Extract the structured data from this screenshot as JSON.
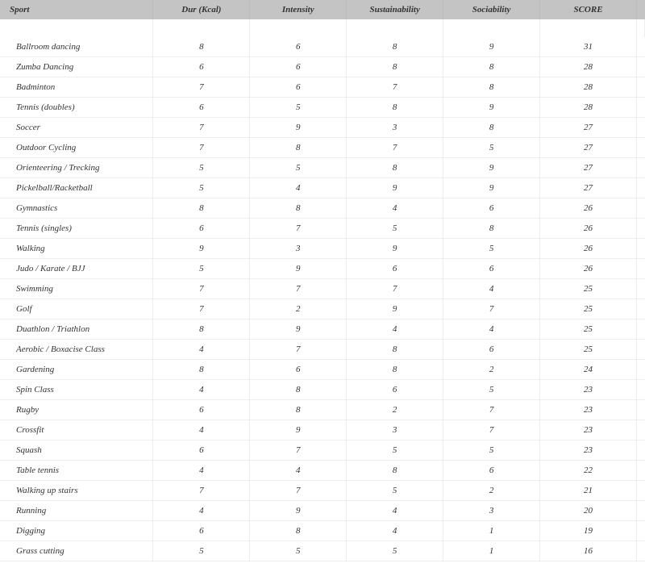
{
  "columns": [
    "Sport",
    "Dur (Kcal)",
    "Intensity",
    "Sustainability",
    "Sociability",
    "SCORE"
  ],
  "rows": [
    {
      "sport": "Ballroom dancing",
      "dur": 8,
      "intensity": 6,
      "sustain": 8,
      "social": 9,
      "score": 31
    },
    {
      "sport": "Zumba Dancing",
      "dur": 6,
      "intensity": 6,
      "sustain": 8,
      "social": 8,
      "score": 28
    },
    {
      "sport": "Badminton",
      "dur": 7,
      "intensity": 6,
      "sustain": 7,
      "social": 8,
      "score": 28
    },
    {
      "sport": "Tennis (doubles)",
      "dur": 6,
      "intensity": 5,
      "sustain": 8,
      "social": 9,
      "score": 28
    },
    {
      "sport": "Soccer",
      "dur": 7,
      "intensity": 9,
      "sustain": 3,
      "social": 8,
      "score": 27
    },
    {
      "sport": "Outdoor Cycling",
      "dur": 7,
      "intensity": 8,
      "sustain": 7,
      "social": 5,
      "score": 27
    },
    {
      "sport": "Orienteering / Trecking",
      "dur": 5,
      "intensity": 5,
      "sustain": 8,
      "social": 9,
      "score": 27
    },
    {
      "sport": "Pickelball/Racketball",
      "dur": 5,
      "intensity": 4,
      "sustain": 9,
      "social": 9,
      "score": 27
    },
    {
      "sport": "Gymnastics",
      "dur": 8,
      "intensity": 8,
      "sustain": 4,
      "social": 6,
      "score": 26
    },
    {
      "sport": "Tennis (singles)",
      "dur": 6,
      "intensity": 7,
      "sustain": 5,
      "social": 8,
      "score": 26
    },
    {
      "sport": "Walking",
      "dur": 9,
      "intensity": 3,
      "sustain": 9,
      "social": 5,
      "score": 26
    },
    {
      "sport": "Judo / Karate / BJJ",
      "dur": 5,
      "intensity": 9,
      "sustain": 6,
      "social": 6,
      "score": 26
    },
    {
      "sport": "Swimming",
      "dur": 7,
      "intensity": 7,
      "sustain": 7,
      "social": 4,
      "score": 25
    },
    {
      "sport": "Golf",
      "dur": 7,
      "intensity": 2,
      "sustain": 9,
      "social": 7,
      "score": 25
    },
    {
      "sport": "Duathlon / Triathlon",
      "dur": 8,
      "intensity": 9,
      "sustain": 4,
      "social": 4,
      "score": 25
    },
    {
      "sport": "Aerobic / Boxacise Class",
      "dur": 4,
      "intensity": 7,
      "sustain": 8,
      "social": 6,
      "score": 25
    },
    {
      "sport": "Gardening",
      "dur": 8,
      "intensity": 6,
      "sustain": 8,
      "social": 2,
      "score": 24
    },
    {
      "sport": "Spin Class",
      "dur": 4,
      "intensity": 8,
      "sustain": 6,
      "social": 5,
      "score": 23
    },
    {
      "sport": "Rugby",
      "dur": 6,
      "intensity": 8,
      "sustain": 2,
      "social": 7,
      "score": 23
    },
    {
      "sport": "Crossfit",
      "dur": 4,
      "intensity": 9,
      "sustain": 3,
      "social": 7,
      "score": 23
    },
    {
      "sport": "Squash",
      "dur": 6,
      "intensity": 7,
      "sustain": 5,
      "social": 5,
      "score": 23
    },
    {
      "sport": "Table tennis",
      "dur": 4,
      "intensity": 4,
      "sustain": 8,
      "social": 6,
      "score": 22
    },
    {
      "sport": "Walking up stairs",
      "dur": 7,
      "intensity": 7,
      "sustain": 5,
      "social": 2,
      "score": 21
    },
    {
      "sport": "Running",
      "dur": 4,
      "intensity": 9,
      "sustain": 4,
      "social": 3,
      "score": 20
    },
    {
      "sport": "Digging",
      "dur": 6,
      "intensity": 8,
      "sustain": 4,
      "social": 1,
      "score": 19
    },
    {
      "sport": "Grass cutting",
      "dur": 5,
      "intensity": 5,
      "sustain": 5,
      "social": 1,
      "score": 16
    }
  ]
}
